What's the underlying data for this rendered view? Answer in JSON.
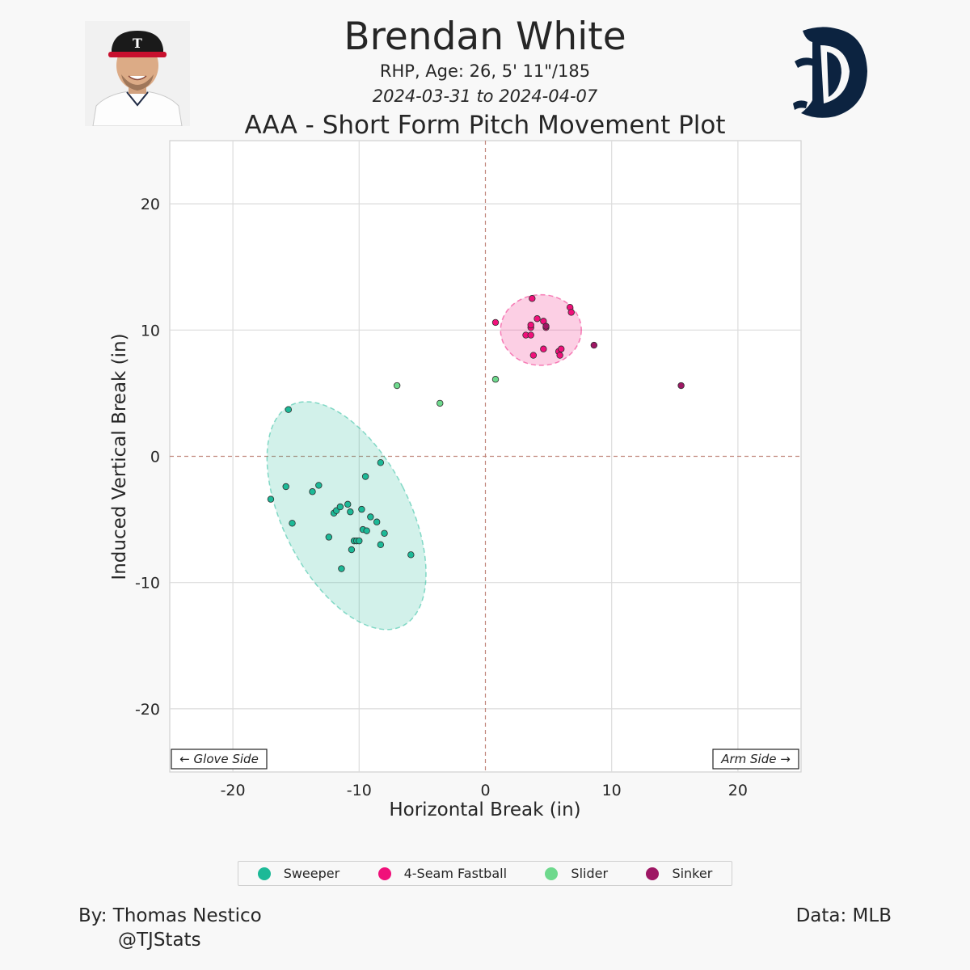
{
  "header": {
    "player_name": "Brendan White",
    "player_info": "RHP, Age: 26, 5' 11\"/185",
    "date_range": "2024-03-31 to 2024-04-07",
    "chart_title": "AAA - Short Form Pitch Movement Plot"
  },
  "images": {
    "headshot": "player-headshot",
    "logo": "detroit-tigers-old-english-d-logo"
  },
  "chart_data": {
    "type": "scatter",
    "xlabel": "Horizontal Break (in)",
    "ylabel": "Induced Vertical Break (in)",
    "xlim": [
      -25,
      25
    ],
    "ylim": [
      -25,
      25
    ],
    "xticks": [
      -20,
      -10,
      0,
      10,
      20
    ],
    "yticks": [
      -20,
      -10,
      0,
      10,
      20
    ],
    "grid": true,
    "reference_lines": {
      "x": 0,
      "y": 0,
      "style": "dashed",
      "color": "#c0857a"
    },
    "annotations": {
      "glove_side": "← Glove Side",
      "arm_side": "Arm Side →"
    },
    "legend_position": "bottom",
    "series": [
      {
        "name": "Sweeper",
        "color": "#1cb997",
        "points": [
          [
            -15.6,
            3.7
          ],
          [
            -8.3,
            -0.5
          ],
          [
            -17.0,
            -3.4
          ],
          [
            -15.8,
            -2.4
          ],
          [
            -15.3,
            -5.3
          ],
          [
            -13.7,
            -2.8
          ],
          [
            -13.2,
            -2.3
          ],
          [
            -12.0,
            -4.5
          ],
          [
            -11.8,
            -4.3
          ],
          [
            -11.5,
            -4.0
          ],
          [
            -11.4,
            -8.9
          ],
          [
            -10.9,
            -3.8
          ],
          [
            -10.7,
            -4.4
          ],
          [
            -10.6,
            -7.4
          ],
          [
            -10.4,
            -6.7
          ],
          [
            -10.2,
            -6.7
          ],
          [
            -10.0,
            -6.7
          ],
          [
            -12.4,
            -6.4
          ],
          [
            -9.8,
            -4.2
          ],
          [
            -9.7,
            -5.8
          ],
          [
            -9.5,
            -1.6
          ],
          [
            -9.4,
            -5.9
          ],
          [
            -9.1,
            -4.8
          ],
          [
            -8.6,
            -5.2
          ],
          [
            -8.3,
            -7.0
          ],
          [
            -8.0,
            -6.1
          ],
          [
            -5.9,
            -7.8
          ]
        ],
        "ellipse": {
          "cx": -11.0,
          "cy": -4.7,
          "rx": 5.0,
          "ry": 9.8,
          "angle": 27
        }
      },
      {
        "name": "4-Seam Fastball",
        "color": "#f0107a",
        "points": [
          [
            0.8,
            10.6
          ],
          [
            3.2,
            9.6
          ],
          [
            3.6,
            9.6
          ],
          [
            3.6,
            10.2
          ],
          [
            3.6,
            10.4
          ],
          [
            3.7,
            12.5
          ],
          [
            3.8,
            8.0
          ],
          [
            4.1,
            10.9
          ],
          [
            4.6,
            8.5
          ],
          [
            4.6,
            10.7
          ],
          [
            4.8,
            10.2
          ],
          [
            5.8,
            8.3
          ],
          [
            5.9,
            8.0
          ],
          [
            6.0,
            8.5
          ],
          [
            6.7,
            11.8
          ],
          [
            6.8,
            11.4
          ]
        ],
        "ellipse": {
          "cx": 4.4,
          "cy": 10.0,
          "rx": 3.2,
          "ry": 2.8,
          "angle": 0
        }
      },
      {
        "name": "Slider",
        "color": "#6ed98d",
        "points": [
          [
            -7.0,
            5.6
          ],
          [
            -3.6,
            4.2
          ],
          [
            0.8,
            6.1
          ]
        ]
      },
      {
        "name": "Sinker",
        "color": "#9e1764",
        "points": [
          [
            4.8,
            10.3
          ],
          [
            8.6,
            8.8
          ],
          [
            15.5,
            5.6
          ]
        ]
      }
    ]
  },
  "footer": {
    "by": "By: Thomas Nestico",
    "handle": "@TJStats",
    "data_source": "Data: MLB"
  }
}
